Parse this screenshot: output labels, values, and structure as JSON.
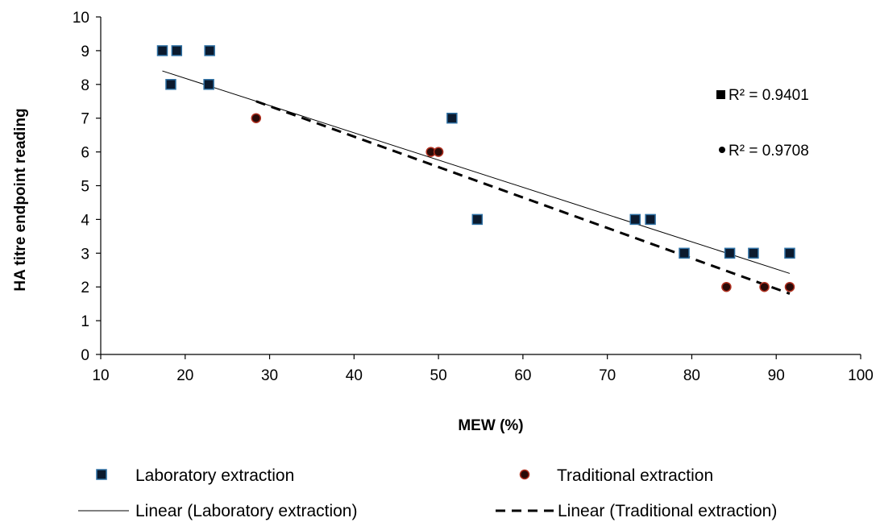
{
  "chart_data": {
    "type": "scatter",
    "title": "",
    "xlabel": "MEW (%)",
    "ylabel": "HA titre endpoint reading",
    "xlim": [
      10,
      100
    ],
    "ylim": [
      0,
      10
    ],
    "x_ticks": [
      "10",
      "20",
      "30",
      "40",
      "50",
      "60",
      "70",
      "80",
      "90",
      "100"
    ],
    "y_ticks": [
      "0",
      "1",
      "2",
      "3",
      "4",
      "5",
      "6",
      "7",
      "8",
      "9",
      "10"
    ],
    "grid": false,
    "legend_position": "bottom",
    "series": [
      {
        "name": "Laboratory extraction",
        "marker": "square",
        "color": "#0b1a2e",
        "edge_color": "#2d6fa3",
        "points": [
          {
            "x": 17.3,
            "y": 9
          },
          {
            "x": 19.0,
            "y": 9
          },
          {
            "x": 22.9,
            "y": 9
          },
          {
            "x": 18.3,
            "y": 8
          },
          {
            "x": 22.8,
            "y": 8
          },
          {
            "x": 51.6,
            "y": 7
          },
          {
            "x": 54.6,
            "y": 4
          },
          {
            "x": 73.3,
            "y": 4
          },
          {
            "x": 75.1,
            "y": 4
          },
          {
            "x": 79.1,
            "y": 3
          },
          {
            "x": 84.5,
            "y": 3
          },
          {
            "x": 87.3,
            "y": 3
          },
          {
            "x": 91.6,
            "y": 3
          }
        ]
      },
      {
        "name": "Traditional extraction",
        "marker": "circle",
        "color": "#2a0a08",
        "edge_color": "#b03020",
        "points": [
          {
            "x": 28.4,
            "y": 7
          },
          {
            "x": 49.1,
            "y": 6
          },
          {
            "x": 50.0,
            "y": 6
          },
          {
            "x": 84.1,
            "y": 2
          },
          {
            "x": 88.6,
            "y": 2
          },
          {
            "x": 91.6,
            "y": 2
          }
        ]
      }
    ],
    "trendlines": [
      {
        "name": "Linear (Laboratory extraction)",
        "style": "solid",
        "color": "#000000",
        "from": {
          "x": 17.3,
          "y": 8.4
        },
        "to": {
          "x": 91.6,
          "y": 2.4
        }
      },
      {
        "name": "Linear (Traditional extraction)",
        "style": "dashed",
        "color": "#000000",
        "from": {
          "x": 28.4,
          "y": 7.5
        },
        "to": {
          "x": 91.6,
          "y": 1.8
        }
      }
    ],
    "annotations": [
      {
        "marker": "square",
        "text": "R² = 0.9401"
      },
      {
        "marker": "circle",
        "text": "R² = 0.9708"
      }
    ]
  }
}
